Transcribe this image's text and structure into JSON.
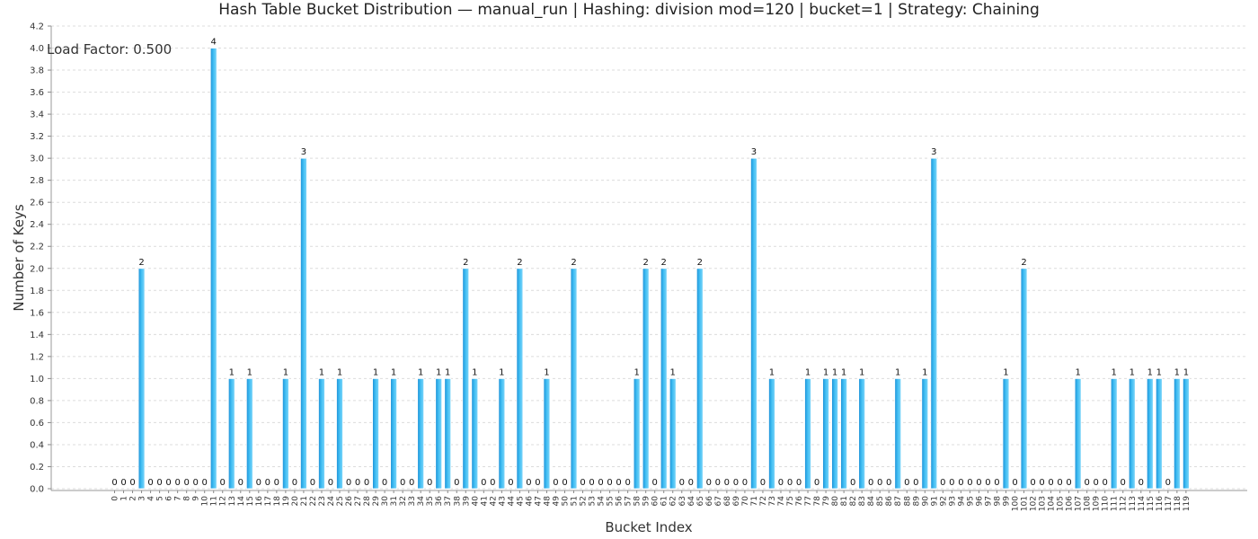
{
  "chart_data": {
    "type": "bar",
    "title": "Hash Table Bucket Distribution — manual_run | Hashing: division mod=120 | bucket=1 | Strategy: Chaining",
    "annotation": "Load Factor: 0.500",
    "xlabel": "Bucket Index",
    "ylabel": "Number of Keys",
    "ylim": [
      0,
      4.2
    ],
    "yticks": [
      "0.0",
      "0.2",
      "0.4",
      "0.6",
      "0.8",
      "1.0",
      "1.2",
      "1.4",
      "1.6",
      "1.8",
      "2.0",
      "2.2",
      "2.4",
      "2.6",
      "2.8",
      "3.0",
      "3.2",
      "3.4",
      "3.6",
      "3.8",
      "4.0",
      "4.2"
    ],
    "grid": true,
    "bar_color": "#3fbdf2",
    "categories": [
      "0",
      "1",
      "2",
      "3",
      "4",
      "5",
      "6",
      "7",
      "8",
      "9",
      "10",
      "11",
      "12",
      "13",
      "14",
      "15",
      "16",
      "17",
      "18",
      "19",
      "20",
      "21",
      "22",
      "23",
      "24",
      "25",
      "26",
      "27",
      "28",
      "29",
      "30",
      "31",
      "32",
      "33",
      "34",
      "35",
      "36",
      "37",
      "38",
      "39",
      "40",
      "41",
      "42",
      "43",
      "44",
      "45",
      "46",
      "47",
      "48",
      "49",
      "50",
      "51",
      "52",
      "53",
      "54",
      "55",
      "56",
      "57",
      "58",
      "59",
      "60",
      "61",
      "62",
      "63",
      "64",
      "65",
      "66",
      "67",
      "68",
      "69",
      "70",
      "71",
      "72",
      "73",
      "74",
      "75",
      "76",
      "77",
      "78",
      "79",
      "80",
      "81",
      "82",
      "83",
      "84",
      "85",
      "86",
      "87",
      "88",
      "89",
      "90",
      "91",
      "92",
      "93",
      "94",
      "95",
      "96",
      "97",
      "98",
      "99",
      "100",
      "101",
      "102",
      "103",
      "104",
      "105",
      "106",
      "107",
      "108",
      "109",
      "110",
      "111",
      "112",
      "113",
      "114",
      "115",
      "116",
      "117",
      "118",
      "119"
    ],
    "values": [
      0,
      0,
      0,
      2,
      0,
      0,
      0,
      0,
      0,
      0,
      0,
      4,
      0,
      1,
      0,
      1,
      0,
      0,
      0,
      1,
      0,
      3,
      0,
      1,
      0,
      1,
      0,
      0,
      0,
      1,
      0,
      1,
      0,
      0,
      1,
      0,
      1,
      1,
      0,
      2,
      1,
      0,
      0,
      1,
      0,
      2,
      0,
      0,
      1,
      0,
      0,
      2,
      0,
      0,
      0,
      0,
      0,
      0,
      1,
      2,
      0,
      2,
      1,
      0,
      0,
      2,
      0,
      0,
      0,
      0,
      0,
      3,
      0,
      1,
      0,
      0,
      0,
      1,
      0,
      1,
      1,
      1,
      0,
      1,
      0,
      0,
      0,
      1,
      0,
      0,
      1,
      3,
      0,
      0,
      0,
      0,
      0,
      0,
      0,
      1,
      0,
      2,
      0,
      0,
      0,
      0,
      0,
      1,
      0,
      0,
      0,
      1,
      0,
      1,
      0,
      1,
      1,
      0,
      1,
      1
    ]
  }
}
